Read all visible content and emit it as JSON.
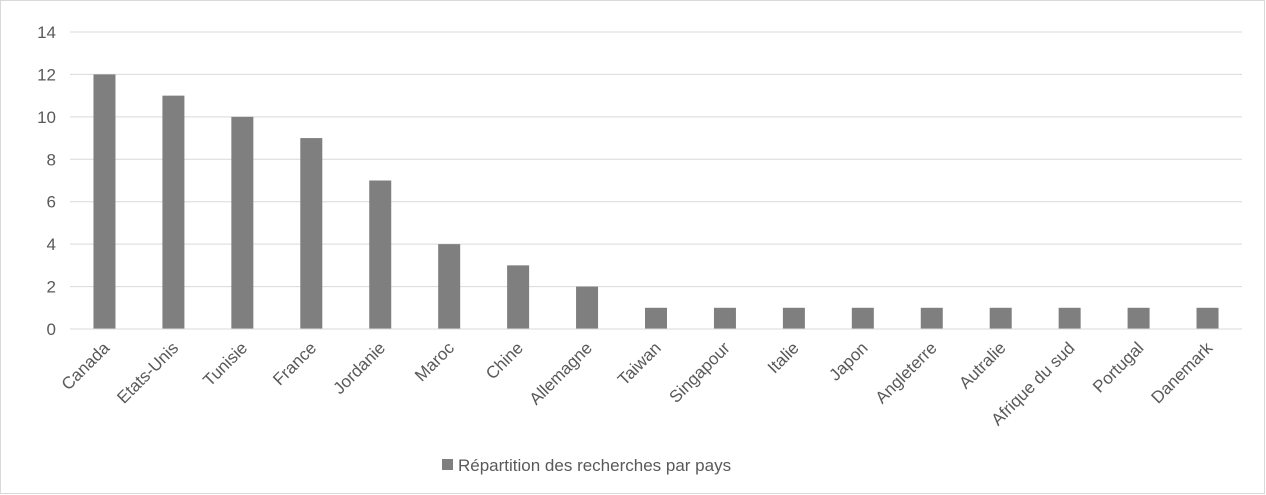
{
  "chart_data": {
    "type": "bar",
    "categories": [
      "Canada",
      "Etats-Unis",
      "Tunisie",
      "France",
      "Jordanie",
      "Maroc",
      "Chine",
      "Allemagne",
      "Taiwan",
      "Singapour",
      "Italie",
      "Japon",
      "Angleterre",
      "Autralie",
      "Afrique du sud",
      "Portugal",
      "Danemark"
    ],
    "series": [
      {
        "name": "Répartition des recherches par pays",
        "color": "#7f7f7f",
        "values": [
          12,
          11,
          10,
          9,
          7,
          4,
          3,
          2,
          1,
          1,
          1,
          1,
          1,
          1,
          1,
          1,
          1
        ]
      }
    ],
    "ylim": [
      0,
      14
    ],
    "yticks": [
      0,
      2,
      4,
      6,
      8,
      10,
      12,
      14
    ],
    "grid": true,
    "legend": "bottom"
  }
}
